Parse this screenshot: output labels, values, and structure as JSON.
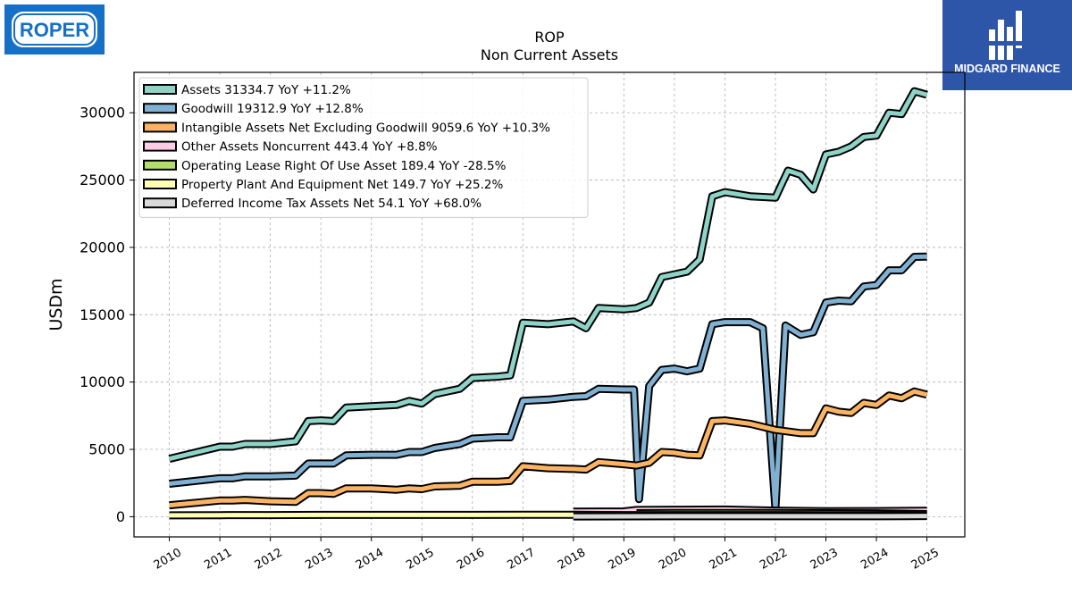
{
  "branding": {
    "company_logo_text": "ROPER",
    "publisher_name": "MIDGARD FINANCE",
    "company_logo_color": "#1570c6",
    "publisher_bg_color": "#2e56a8"
  },
  "chart_data": {
    "type": "line",
    "title": "ROP",
    "subtitle": "Non Current  Assets",
    "xlabel": "",
    "ylabel": "USDm",
    "xlim": [
      2009.3,
      2025.75
    ],
    "ylim": [
      -1500,
      33000
    ],
    "x_ticks": [
      "2010",
      "2011",
      "2012",
      "2013",
      "2014",
      "2015",
      "2016",
      "2017",
      "2018",
      "2019",
      "2020",
      "2021",
      "2022",
      "2023",
      "2024",
      "2025"
    ],
    "y_ticks": [
      0,
      5000,
      10000,
      15000,
      20000,
      25000,
      30000
    ],
    "y_tick_labels": [
      "0",
      "5000",
      "10000",
      "15000",
      "20000",
      "25000",
      "30000"
    ],
    "grid": true,
    "legend_position": "top-left",
    "series": [
      {
        "name": "Assets",
        "legend": "Assets  31334.7 YoY +11.2%",
        "color": "#8dd3c7",
        "points": [
          [
            2010,
            4300
          ],
          [
            2011,
            5200
          ],
          [
            2011.25,
            5200
          ],
          [
            2011.5,
            5400
          ],
          [
            2012,
            5400
          ],
          [
            2012.5,
            5600
          ],
          [
            2012.75,
            7100
          ],
          [
            2013,
            7150
          ],
          [
            2013.25,
            7100
          ],
          [
            2013.5,
            8100
          ],
          [
            2014,
            8200
          ],
          [
            2014.5,
            8300
          ],
          [
            2014.75,
            8600
          ],
          [
            2015,
            8400
          ],
          [
            2015.25,
            9100
          ],
          [
            2015.75,
            9500
          ],
          [
            2016,
            10300
          ],
          [
            2016.5,
            10400
          ],
          [
            2016.75,
            10500
          ],
          [
            2017,
            14400
          ],
          [
            2017.5,
            14300
          ],
          [
            2018,
            14500
          ],
          [
            2018.25,
            14000
          ],
          [
            2018.5,
            15500
          ],
          [
            2019,
            15400
          ],
          [
            2019.25,
            15500
          ],
          [
            2019.5,
            15900
          ],
          [
            2019.75,
            17800
          ],
          [
            2020,
            18000
          ],
          [
            2020.25,
            18200
          ],
          [
            2020.5,
            19100
          ],
          [
            2020.75,
            23800
          ],
          [
            2021,
            24100
          ],
          [
            2021.5,
            23800
          ],
          [
            2022,
            23700
          ],
          [
            2022.25,
            25700
          ],
          [
            2022.5,
            25400
          ],
          [
            2022.75,
            24300
          ],
          [
            2023,
            26900
          ],
          [
            2023.25,
            27100
          ],
          [
            2023.5,
            27500
          ],
          [
            2023.75,
            28200
          ],
          [
            2024,
            28300
          ],
          [
            2024.25,
            30000
          ],
          [
            2024.5,
            29900
          ],
          [
            2024.75,
            31600
          ],
          [
            2025,
            31335
          ]
        ]
      },
      {
        "name": "Goodwill",
        "legend": "Goodwill  19312.9 YoY +12.8%",
        "color": "#80b1d3",
        "points": [
          [
            2010,
            2450
          ],
          [
            2011,
            2850
          ],
          [
            2011.25,
            2850
          ],
          [
            2011.5,
            3000
          ],
          [
            2012,
            3000
          ],
          [
            2012.5,
            3050
          ],
          [
            2012.75,
            3950
          ],
          [
            2013,
            3950
          ],
          [
            2013.25,
            3950
          ],
          [
            2013.5,
            4550
          ],
          [
            2014,
            4600
          ],
          [
            2014.5,
            4600
          ],
          [
            2014.75,
            4800
          ],
          [
            2015,
            4800
          ],
          [
            2015.25,
            5100
          ],
          [
            2015.75,
            5400
          ],
          [
            2016,
            5800
          ],
          [
            2016.5,
            5900
          ],
          [
            2016.75,
            5900
          ],
          [
            2017,
            8600
          ],
          [
            2017.5,
            8700
          ],
          [
            2018,
            8900
          ],
          [
            2018.25,
            8950
          ],
          [
            2018.5,
            9500
          ],
          [
            2019,
            9450
          ],
          [
            2019.2,
            9450
          ],
          [
            2019.3,
            1300
          ],
          [
            2019.5,
            9700
          ],
          [
            2019.75,
            10900
          ],
          [
            2020,
            11000
          ],
          [
            2020.25,
            10800
          ],
          [
            2020.5,
            11000
          ],
          [
            2020.75,
            14300
          ],
          [
            2021,
            14450
          ],
          [
            2021.5,
            14450
          ],
          [
            2021.75,
            14000
          ],
          [
            2022,
            600
          ],
          [
            2022.2,
            14200
          ],
          [
            2022.5,
            13500
          ],
          [
            2022.75,
            13700
          ],
          [
            2023,
            15900
          ],
          [
            2023.25,
            16050
          ],
          [
            2023.5,
            16000
          ],
          [
            2023.75,
            17100
          ],
          [
            2024,
            17200
          ],
          [
            2024.25,
            18300
          ],
          [
            2024.5,
            18300
          ],
          [
            2024.75,
            19300
          ],
          [
            2025,
            19313
          ]
        ]
      },
      {
        "name": "Intangible Assets Net Excluding Goodwill",
        "legend": "Intangible Assets Net Excluding Goodwill  9059.6 YoY +10.3%",
        "color": "#fdb462",
        "points": [
          [
            2010,
            850
          ],
          [
            2011,
            1200
          ],
          [
            2011.25,
            1200
          ],
          [
            2011.5,
            1250
          ],
          [
            2012,
            1150
          ],
          [
            2012.5,
            1100
          ],
          [
            2012.75,
            1750
          ],
          [
            2013,
            1750
          ],
          [
            2013.25,
            1700
          ],
          [
            2013.5,
            2100
          ],
          [
            2014,
            2100
          ],
          [
            2014.5,
            2000
          ],
          [
            2014.75,
            2100
          ],
          [
            2015,
            2050
          ],
          [
            2015.25,
            2250
          ],
          [
            2015.75,
            2300
          ],
          [
            2016,
            2600
          ],
          [
            2016.5,
            2600
          ],
          [
            2016.75,
            2650
          ],
          [
            2017,
            3750
          ],
          [
            2017.5,
            3600
          ],
          [
            2018,
            3550
          ],
          [
            2018.25,
            3500
          ],
          [
            2018.5,
            4050
          ],
          [
            2019,
            3900
          ],
          [
            2019.25,
            3800
          ],
          [
            2019.5,
            4000
          ],
          [
            2019.75,
            4800
          ],
          [
            2020,
            4750
          ],
          [
            2020.25,
            4600
          ],
          [
            2020.5,
            4550
          ],
          [
            2020.75,
            7100
          ],
          [
            2021,
            7150
          ],
          [
            2021.5,
            6900
          ],
          [
            2022,
            6450
          ],
          [
            2022.5,
            6200
          ],
          [
            2022.75,
            6200
          ],
          [
            2023,
            8050
          ],
          [
            2023.25,
            7800
          ],
          [
            2023.5,
            7700
          ],
          [
            2023.75,
            8450
          ],
          [
            2024,
            8300
          ],
          [
            2024.25,
            9000
          ],
          [
            2024.5,
            8800
          ],
          [
            2024.75,
            9300
          ],
          [
            2025,
            9060
          ]
        ]
      },
      {
        "name": "Other Assets Noncurrent",
        "legend": "Other Assets Noncurrent  443.4 YoY +8.8%",
        "color": "#fccde5",
        "points": [
          [
            2018,
            380
          ],
          [
            2019,
            390
          ],
          [
            2019.25,
            500
          ],
          [
            2020,
            520
          ],
          [
            2021,
            530
          ],
          [
            2022,
            450
          ],
          [
            2023,
            410
          ],
          [
            2024,
            420
          ],
          [
            2025,
            443
          ]
        ]
      },
      {
        "name": "Operating Lease Right Of Use Asset",
        "legend": "Operating Lease Right Of Use Asset  189.4 YoY -28.5%",
        "color": "#b3de69",
        "points": [
          [
            2019.25,
            260
          ],
          [
            2020,
            270
          ],
          [
            2021,
            280
          ],
          [
            2022,
            270
          ],
          [
            2023,
            260
          ],
          [
            2024,
            250
          ],
          [
            2025,
            189
          ]
        ]
      },
      {
        "name": "Property Plant And Equipment Net",
        "legend": "Property Plant And Equipment Net  149.7 YoY +25.2%",
        "color": "#ffffb3",
        "points": [
          [
            2010,
            100
          ],
          [
            2011,
            110
          ],
          [
            2012,
            120
          ],
          [
            2013,
            130
          ],
          [
            2014,
            130
          ],
          [
            2015,
            130
          ],
          [
            2016,
            130
          ],
          [
            2017,
            140
          ],
          [
            2018,
            140
          ],
          [
            2019,
            120
          ],
          [
            2020,
            120
          ],
          [
            2021,
            120
          ],
          [
            2022,
            120
          ],
          [
            2023,
            115
          ],
          [
            2024,
            120
          ],
          [
            2025,
            150
          ]
        ]
      },
      {
        "name": "Deferred Income Tax Assets Net",
        "legend": "Deferred Income Tax Assets Net  54.1 YoY +68.0%",
        "color": "#d9d9d9",
        "points": [
          [
            2018,
            20
          ],
          [
            2019,
            25
          ],
          [
            2020,
            30
          ],
          [
            2021,
            35
          ],
          [
            2022,
            30
          ],
          [
            2023,
            35
          ],
          [
            2024,
            32
          ],
          [
            2025,
            54
          ]
        ]
      }
    ]
  }
}
